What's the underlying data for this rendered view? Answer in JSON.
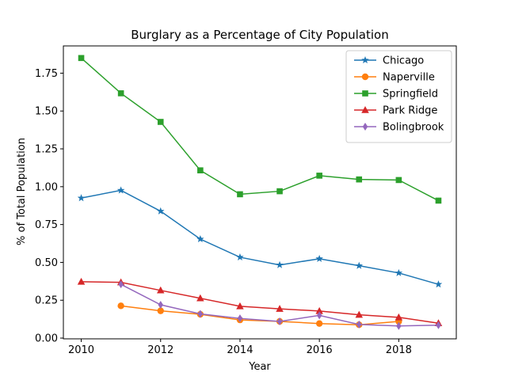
{
  "chart_data": {
    "type": "line",
    "title": "Burglary as a Percentage of City Population",
    "xlabel": "Year",
    "ylabel": "% of Total Population",
    "xlim": [
      2009.55,
      2019.45
    ],
    "ylim": [
      -0.005,
      1.93
    ],
    "xticks": [
      2010,
      2012,
      2014,
      2016,
      2018
    ],
    "yticks": [
      0.0,
      0.25,
      0.5,
      0.75,
      1.0,
      1.25,
      1.5,
      1.75
    ],
    "ytick_labels": [
      "0.00",
      "0.25",
      "0.50",
      "0.75",
      "1.00",
      "1.25",
      "1.50",
      "1.75"
    ],
    "grid": false,
    "legend_position": "top-right",
    "series": [
      {
        "name": "Chicago",
        "color": "#1f77b4",
        "marker": "star",
        "x": [
          2010,
          2011,
          2012,
          2013,
          2014,
          2015,
          2016,
          2017,
          2018,
          2019
        ],
        "y": [
          0.925,
          0.976,
          0.838,
          0.654,
          0.534,
          0.483,
          0.524,
          0.478,
          0.43,
          0.355
        ]
      },
      {
        "name": "Naperville",
        "color": "#ff7f0e",
        "marker": "circle",
        "x": [
          2011,
          2012,
          2013,
          2014,
          2015,
          2016,
          2017,
          2018
        ],
        "y": [
          0.213,
          0.18,
          0.157,
          0.12,
          0.11,
          0.096,
          0.088,
          0.11
        ]
      },
      {
        "name": "Springfield",
        "color": "#2ca02c",
        "marker": "square",
        "x": [
          2010,
          2011,
          2012,
          2013,
          2014,
          2015,
          2016,
          2017,
          2018,
          2019
        ],
        "y": [
          1.85,
          1.617,
          1.428,
          1.108,
          0.95,
          0.97,
          1.073,
          1.048,
          1.044,
          0.908
        ]
      },
      {
        "name": "Park Ridge",
        "color": "#d62728",
        "marker": "triangle",
        "x": [
          2010,
          2011,
          2012,
          2013,
          2014,
          2015,
          2016,
          2017,
          2018,
          2019
        ],
        "y": [
          0.372,
          0.368,
          0.315,
          0.263,
          0.21,
          0.193,
          0.179,
          0.154,
          0.137,
          0.098
        ]
      },
      {
        "name": "Bolingbrook",
        "color": "#9467bd",
        "marker": "diamond",
        "x": [
          2011,
          2012,
          2013,
          2014,
          2015,
          2016,
          2017,
          2018,
          2019
        ],
        "y": [
          0.355,
          0.22,
          0.16,
          0.13,
          0.11,
          0.15,
          0.09,
          0.08,
          0.085
        ]
      }
    ]
  }
}
